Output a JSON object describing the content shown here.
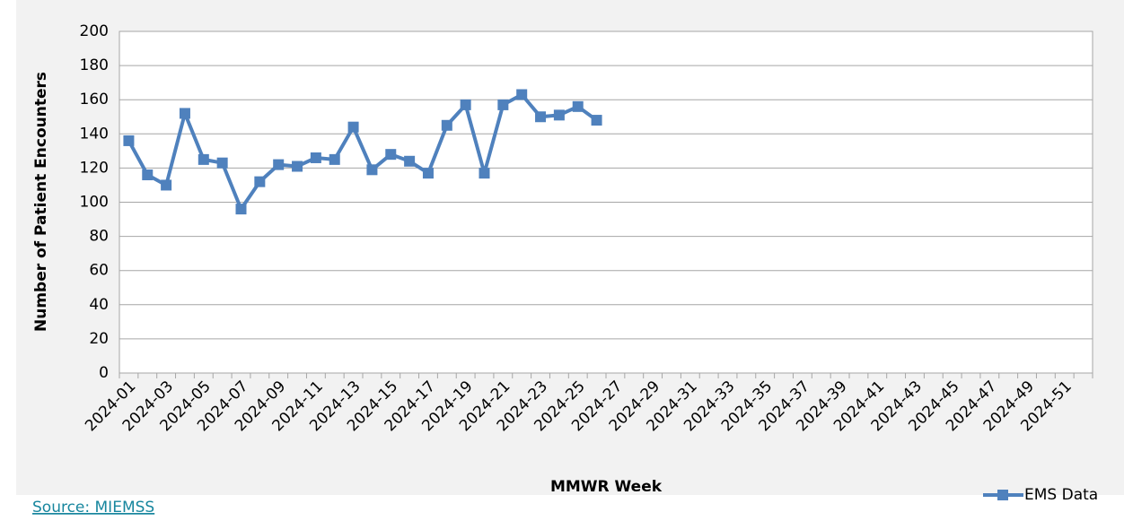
{
  "chart_data": {
    "type": "line",
    "x_label": "MMWR Week",
    "y_label": "Number of Patient Encounters",
    "source": "Source: MIEMSS",
    "categories": [
      "2024-01",
      null,
      "2024-03",
      null,
      "2024-05",
      null,
      "2024-07",
      null,
      "2024-09",
      null,
      "2024-11",
      null,
      "2024-13",
      null,
      "2024-15",
      null,
      "2024-17",
      null,
      "2024-19",
      null,
      "2024-21",
      null,
      "2024-23",
      null,
      "2024-25",
      null,
      "2024-27",
      null,
      "2024-29",
      null,
      "2024-31",
      null,
      "2024-33",
      null,
      "2024-35",
      null,
      "2024-37",
      null,
      "2024-39",
      null,
      "2024-41",
      null,
      "2024-43",
      null,
      "2024-45",
      null,
      "2024-47",
      null,
      "2024-49",
      null,
      "2024-51",
      null
    ],
    "series": [
      {
        "name": "EMS Data",
        "color": "#4f81bd",
        "values": [
          136,
          116,
          110,
          152,
          125,
          123,
          96,
          112,
          122,
          121,
          126,
          125,
          144,
          119,
          128,
          124,
          117,
          145,
          157,
          117,
          157,
          163,
          150,
          151,
          156,
          148,
          null,
          null,
          null,
          null,
          null,
          null,
          null,
          null,
          null,
          null,
          null,
          null,
          null,
          null,
          null,
          null,
          null,
          null,
          null,
          null,
          null,
          null,
          null,
          null,
          null,
          null
        ]
      }
    ],
    "ylim": [
      0,
      200
    ],
    "yticks": [
      0,
      20,
      40,
      60,
      80,
      100,
      120,
      140,
      160,
      180,
      200
    ],
    "grid": true,
    "legend": "bottom-right"
  }
}
